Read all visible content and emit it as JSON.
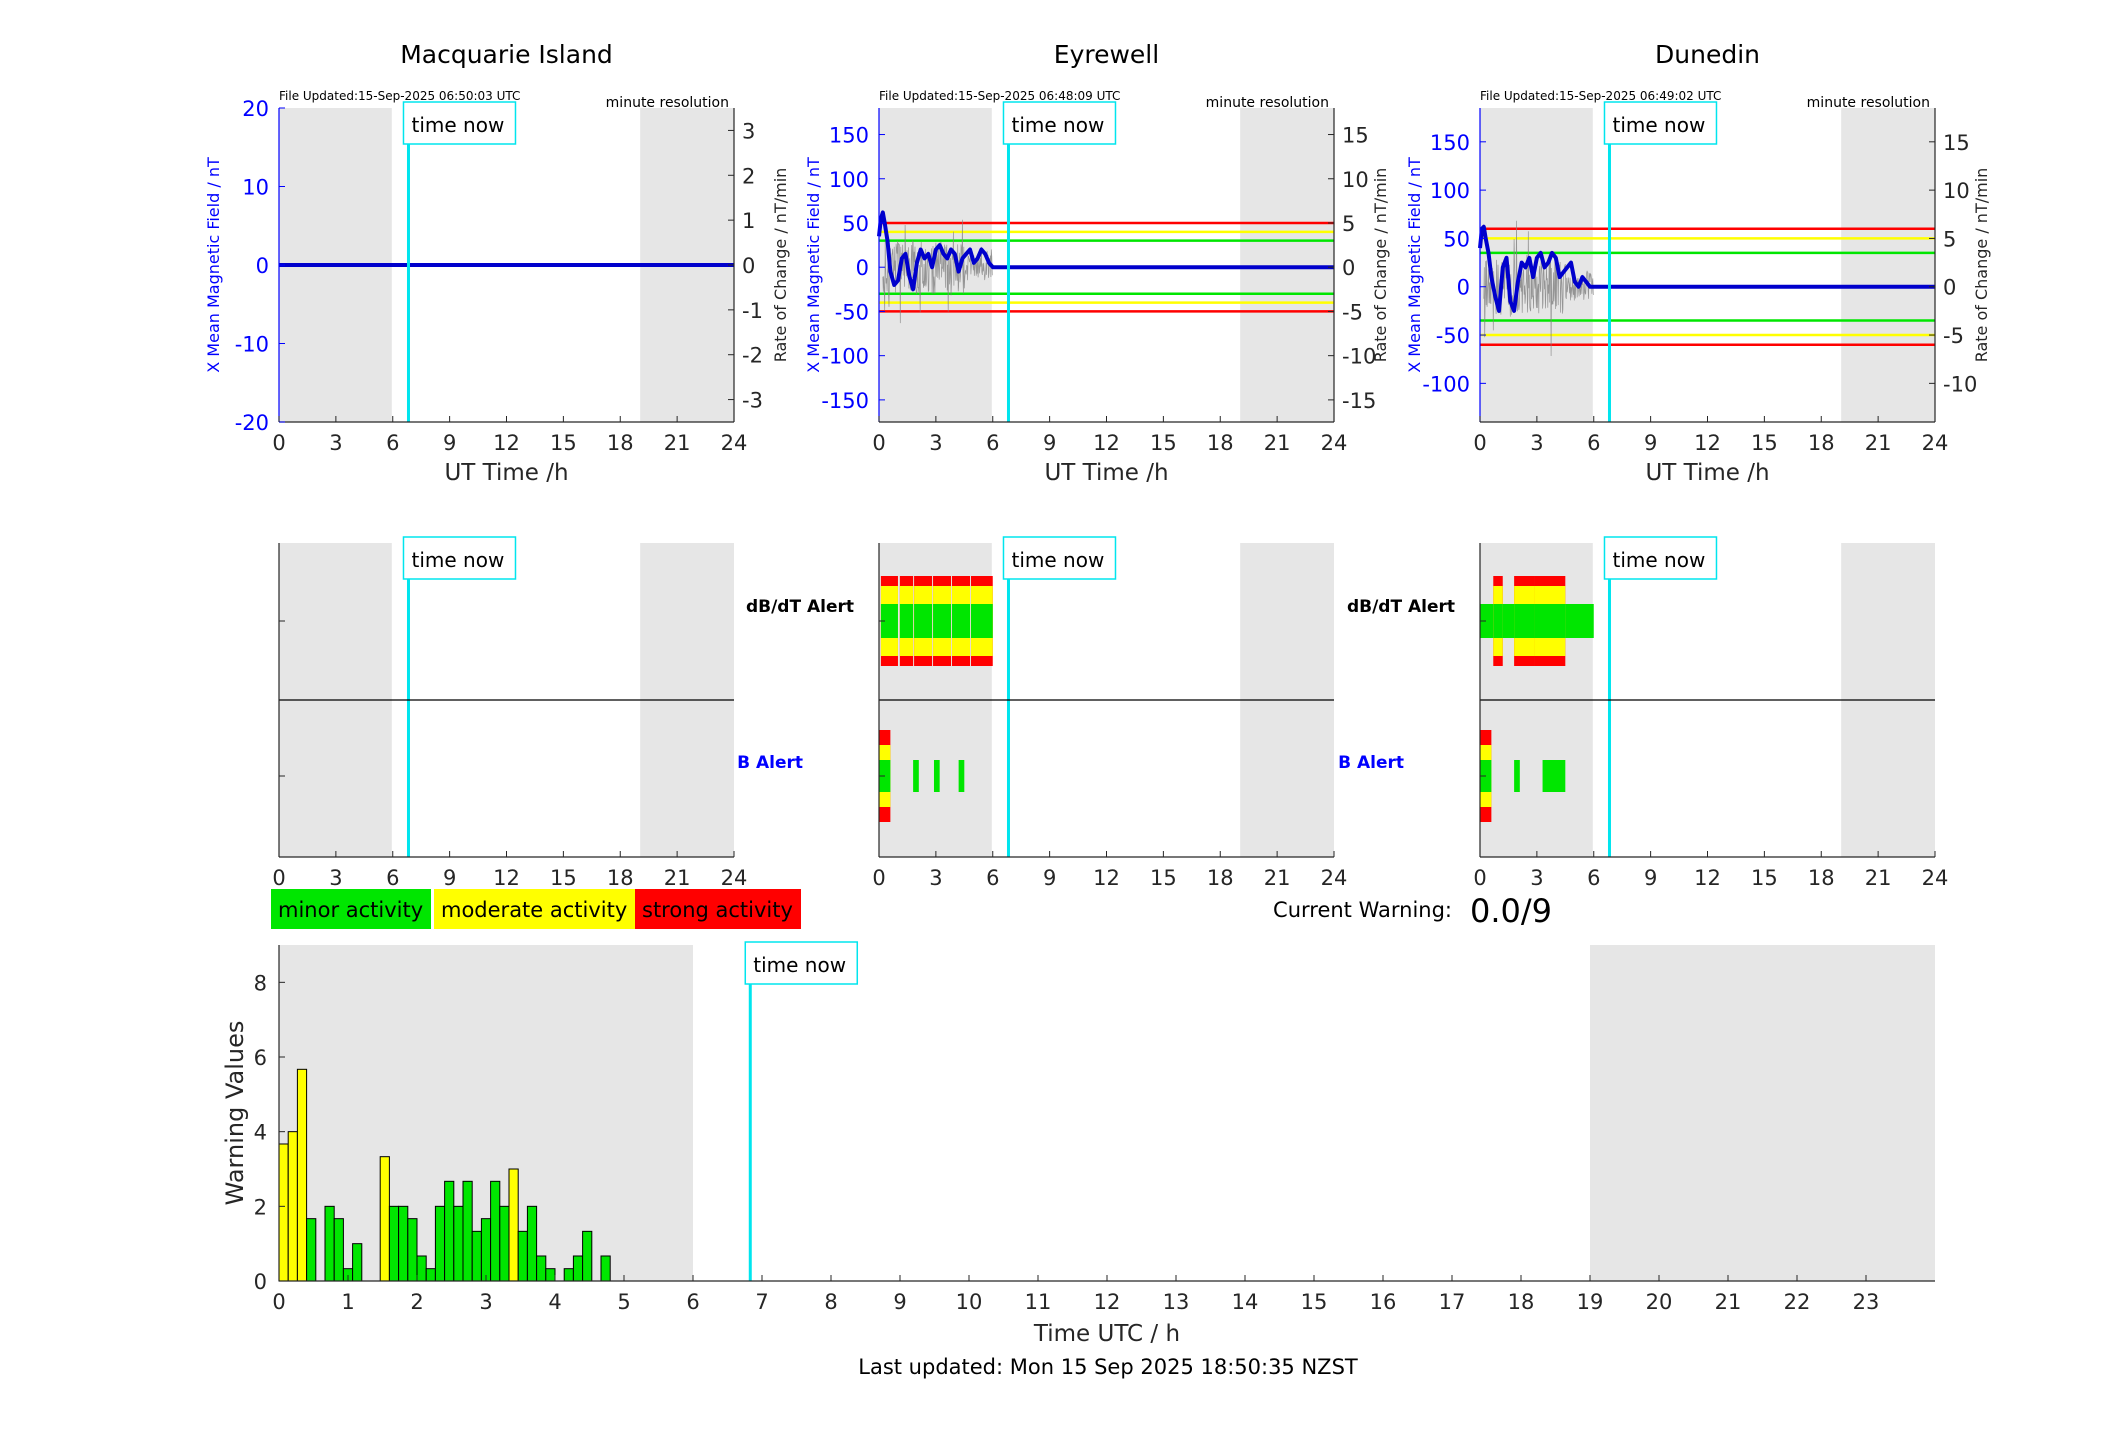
{
  "colors": {
    "minor": "#00e600",
    "moderate": "#ffff00",
    "strong": "#ff0000",
    "time_now": "#00e5ee",
    "night_shade": "#e6e6e6",
    "mean_line": "#0000cc",
    "axis_blue": "#0000ff",
    "raw_trace": "#808080"
  },
  "common": {
    "file_updated_prefix": "File Updated:",
    "resolution_label": "minute resolution",
    "time_now_label": "time now",
    "left_ylabel": "X Mean Magnetic Field / nT",
    "right_ylabel": "Rate of Change / nT/min",
    "xlabel": "UT Time /h",
    "hour_ticks": [
      "0",
      "3",
      "6",
      "9",
      "12",
      "15",
      "18",
      "21",
      "24"
    ],
    "dbdt_alert_label": "dB/dT Alert",
    "b_alert_label": "B Alert"
  },
  "stations": [
    {
      "name": "Macquarie Island",
      "file_updated": "File Updated:15-Sep-2025 06:50:03 UTC"
    },
    {
      "name": "Eyrewell",
      "file_updated": "File Updated:15-Sep-2025 06:48:09 UTC"
    },
    {
      "name": "Dunedin",
      "file_updated": "File Updated:15-Sep-2025 06:49:02 UTC"
    }
  ],
  "legend": {
    "minor": "minor activity",
    "moderate": "moderate activity",
    "strong": "strong activity"
  },
  "current_warning": {
    "label": "Current Warning:",
    "value": "0.0/9"
  },
  "footer": {
    "last_updated": "Last updated: Mon 15 Sep 2025 18:50:35 NZST"
  },
  "chart_data": [
    {
      "type": "line",
      "station": "Macquarie Island",
      "xlabel": "UT Time /h",
      "ylabel": "X Mean Magnetic Field / nT",
      "y2label": "Rate of Change / nT/min",
      "xlim": [
        0,
        24
      ],
      "ylim": [
        -20,
        20
      ],
      "y2lim": [
        -3.5,
        3.5
      ],
      "yticks": [
        -20,
        -10,
        0,
        10,
        20
      ],
      "y2ticks": [
        -3,
        -2,
        -1,
        0,
        1,
        2,
        3
      ],
      "time_now": 6.83,
      "night_shading": [
        [
          0,
          5.95
        ],
        [
          19.05,
          24
        ]
      ],
      "thresholds": [],
      "series": [
        {
          "x": [
            0,
            24
          ],
          "y": [
            0,
            0
          ]
        }
      ]
    },
    {
      "type": "line",
      "station": "Eyrewell",
      "xlabel": "UT Time /h",
      "ylabel": "X Mean Magnetic Field / nT",
      "y2label": "Rate of Change / nT/min",
      "xlim": [
        0,
        24
      ],
      "ylim": [
        -175,
        180
      ],
      "y2lim": [
        -17.5,
        18
      ],
      "yticks": [
        -150,
        -100,
        -50,
        0,
        50,
        100,
        150
      ],
      "y2ticks": [
        -15,
        -10,
        -5,
        0,
        5,
        10,
        15
      ],
      "time_now": 6.83,
      "night_shading": [
        [
          0,
          5.95
        ],
        [
          19.05,
          24
        ]
      ],
      "thresholds": [
        {
          "level": "strong",
          "values": [
            50,
            -50
          ]
        },
        {
          "level": "moderate",
          "values": [
            40,
            -40
          ]
        },
        {
          "level": "minor",
          "values": [
            30,
            -30
          ]
        }
      ],
      "series": [
        {
          "x": [
            0,
            0.1,
            0.2,
            0.3,
            0.45,
            0.6,
            0.8,
            1.0,
            1.2,
            1.4,
            1.6,
            1.8,
            2.0,
            2.2,
            2.4,
            2.6,
            2.8,
            3.0,
            3.2,
            3.4,
            3.6,
            3.8,
            4.0,
            4.2,
            4.4,
            4.6,
            4.8,
            5.0,
            5.2,
            5.4,
            5.6,
            5.8,
            6.0,
            6.83,
            24
          ],
          "y": [
            35,
            55,
            62,
            50,
            30,
            -5,
            -20,
            -15,
            10,
            15,
            -10,
            -25,
            5,
            20,
            10,
            15,
            0,
            20,
            25,
            15,
            10,
            20,
            15,
            -5,
            10,
            15,
            20,
            5,
            10,
            20,
            15,
            5,
            0,
            0,
            0
          ]
        }
      ]
    },
    {
      "type": "line",
      "station": "Dunedin",
      "xlabel": "UT Time /h",
      "ylabel": "X Mean Magnetic Field / nT",
      "y2label": "Rate of Change / nT/min",
      "xlim": [
        0,
        24
      ],
      "ylim": [
        -140,
        185
      ],
      "y2lim": [
        -14,
        18.5
      ],
      "yticks": [
        -100,
        -50,
        0,
        50,
        100,
        150
      ],
      "y2ticks": [
        -10,
        -5,
        0,
        5,
        10,
        15
      ],
      "time_now": 6.83,
      "night_shading": [
        [
          0,
          5.95
        ],
        [
          19.05,
          24
        ]
      ],
      "thresholds": [
        {
          "level": "strong",
          "values": [
            60,
            -60
          ]
        },
        {
          "level": "moderate",
          "values": [
            50,
            -50
          ]
        },
        {
          "level": "minor",
          "values": [
            35,
            -35
          ]
        }
      ],
      "series": [
        {
          "x": [
            0,
            0.1,
            0.2,
            0.3,
            0.45,
            0.6,
            0.8,
            1.0,
            1.2,
            1.4,
            1.6,
            1.8,
            2.0,
            2.2,
            2.4,
            2.6,
            2.8,
            3.0,
            3.2,
            3.4,
            3.6,
            3.8,
            4.0,
            4.2,
            4.4,
            4.6,
            4.8,
            5.0,
            5.2,
            5.4,
            5.6,
            5.8,
            6.0,
            6.83,
            24
          ],
          "y": [
            40,
            60,
            62,
            50,
            35,
            10,
            -10,
            -25,
            20,
            30,
            -15,
            -25,
            5,
            25,
            20,
            30,
            10,
            30,
            35,
            20,
            25,
            35,
            30,
            10,
            15,
            20,
            25,
            5,
            0,
            10,
            5,
            0,
            0,
            0,
            0
          ]
        }
      ]
    },
    {
      "type": "heatmap",
      "station": "Macquarie Island",
      "rows": [
        "dB/dT Alert",
        "B Alert"
      ],
      "xlim": [
        0,
        24
      ],
      "time_now": 6.83,
      "night_shading": [
        [
          0,
          5.95
        ],
        [
          19.05,
          24
        ]
      ],
      "alerts": {
        "dbdt": [],
        "b": []
      }
    },
    {
      "type": "heatmap",
      "station": "Eyrewell",
      "rows": [
        "dB/dT Alert",
        "B Alert"
      ],
      "xlim": [
        0,
        24
      ],
      "time_now": 6.83,
      "night_shading": [
        [
          0,
          5.95
        ],
        [
          19.05,
          24
        ]
      ],
      "alerts": {
        "dbdt": [
          {
            "start": 0.1,
            "end": 1.0,
            "level": 3
          },
          {
            "start": 1.1,
            "end": 1.8,
            "level": 3
          },
          {
            "start": 1.85,
            "end": 2.8,
            "level": 3
          },
          {
            "start": 2.85,
            "end": 3.8,
            "level": 3
          },
          {
            "start": 3.85,
            "end": 4.8,
            "level": 3
          },
          {
            "start": 4.85,
            "end": 6.0,
            "level": 3
          }
        ],
        "b": [
          {
            "start": 0.0,
            "end": 0.6,
            "level": 3
          },
          {
            "start": 1.8,
            "end": 2.1,
            "level": 1
          },
          {
            "start": 2.9,
            "end": 3.2,
            "level": 1
          },
          {
            "start": 4.2,
            "end": 4.5,
            "level": 1
          }
        ]
      }
    },
    {
      "type": "heatmap",
      "station": "Dunedin",
      "rows": [
        "dB/dT Alert",
        "B Alert"
      ],
      "xlim": [
        0,
        24
      ],
      "time_now": 6.83,
      "night_shading": [
        [
          0,
          5.95
        ],
        [
          19.05,
          24
        ]
      ],
      "alerts": {
        "dbdt": [
          {
            "start": 0.0,
            "end": 0.7,
            "level": 1
          },
          {
            "start": 0.7,
            "end": 1.2,
            "level": 3
          },
          {
            "start": 1.2,
            "end": 1.8,
            "level": 1
          },
          {
            "start": 1.8,
            "end": 2.9,
            "level": 3
          },
          {
            "start": 2.9,
            "end": 4.5,
            "level": 3
          },
          {
            "start": 4.5,
            "end": 6.0,
            "level": 1
          }
        ],
        "b": [
          {
            "start": 0.0,
            "end": 0.6,
            "level": 3
          },
          {
            "start": 1.8,
            "end": 2.1,
            "level": 1
          },
          {
            "start": 3.3,
            "end": 4.5,
            "level": 1
          }
        ]
      }
    },
    {
      "type": "bar",
      "title": "",
      "xlabel": "Time UTC / h",
      "ylabel": "Warning Values",
      "xlim": [
        0,
        24
      ],
      "ylim": [
        0,
        9
      ],
      "yticks": [
        0,
        2,
        4,
        6,
        8
      ],
      "xticks": [
        0,
        1,
        2,
        3,
        4,
        5,
        6,
        7,
        8,
        9,
        10,
        11,
        12,
        13,
        14,
        15,
        16,
        17,
        18,
        19,
        20,
        21,
        22,
        23
      ],
      "time_now": 6.83,
      "night_shading": [
        [
          0,
          6
        ],
        [
          19,
          24
        ]
      ],
      "bar_width": 0.1333,
      "x": [
        0.0667,
        0.2,
        0.3333,
        0.4667,
        0.6,
        0.7333,
        0.8667,
        1.0,
        1.1333,
        1.2667,
        1.4,
        1.5333,
        1.6667,
        1.8,
        1.9333,
        2.0667,
        2.2,
        2.3333,
        2.4667,
        2.6,
        2.7333,
        2.8667,
        3.0,
        3.1333,
        3.2667,
        3.4,
        3.5333,
        3.6667,
        3.8,
        3.9333,
        4.0667,
        4.2,
        4.3333,
        4.4667,
        4.6,
        4.7333,
        4.8667,
        5.0,
        5.1333,
        5.2667,
        5.4,
        5.5333,
        5.6667,
        5.8
      ],
      "values": [
        3.67,
        4.0,
        5.67,
        1.67,
        0,
        2.0,
        1.67,
        0.33,
        1.0,
        0,
        0,
        3.33,
        2.0,
        2.0,
        1.67,
        0.67,
        0.33,
        2.0,
        2.67,
        2.0,
        2.67,
        1.33,
        1.67,
        2.67,
        2.0,
        3.0,
        1.33,
        2.0,
        0.67,
        0.33,
        0,
        0.33,
        0.67,
        1.33,
        0,
        0.67,
        0,
        0,
        0,
        0,
        0,
        0,
        0,
        0
      ]
    }
  ]
}
